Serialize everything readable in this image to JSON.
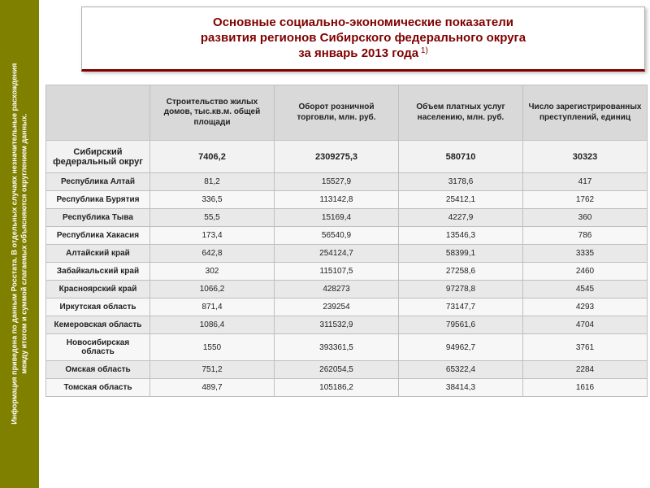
{
  "sidebar": {
    "note_line1": "Информация приведена по данным Росстата. В отдельных случаях незначительные расхождения",
    "note_line2": "между итогом и суммой слагаемых объясняются округлением данных."
  },
  "title": {
    "line1": "Основные социально-экономические показатели",
    "line2": "развития регионов Сибирского федерального округа",
    "line3": "за январь 2013 года",
    "footnote": " 1)"
  },
  "table": {
    "columns": [
      "",
      "Строительство жилых домов, тыс.кв.м. общей площади",
      "Оборот розничной торговли, млн. руб.",
      "Объем платных услуг населению, млн. руб.",
      "Число зарегистрированных преступлений, единиц"
    ],
    "summary": {
      "region": "Сибирский федеральный округ",
      "v1": "7406,2",
      "v2": "2309275,3",
      "v3": "580710",
      "v4": "30323"
    },
    "rows": [
      {
        "region": "Республика Алтай",
        "v1": "81,2",
        "v2": "15527,9",
        "v3": "3178,6",
        "v4": "417"
      },
      {
        "region": "Республика Бурятия",
        "v1": "336,5",
        "v2": "113142,8",
        "v3": "25412,1",
        "v4": "1762"
      },
      {
        "region": "Республика Тыва",
        "v1": "55,5",
        "v2": "15169,4",
        "v3": "4227,9",
        "v4": "360"
      },
      {
        "region": "Республика Хакасия",
        "v1": "173,4",
        "v2": "56540,9",
        "v3": "13546,3",
        "v4": "786"
      },
      {
        "region": "Алтайский край",
        "v1": "642,8",
        "v2": "254124,7",
        "v3": "58399,1",
        "v4": "3335"
      },
      {
        "region": "Забайкальский край",
        "v1": "302",
        "v2": "115107,5",
        "v3": "27258,6",
        "v4": "2460"
      },
      {
        "region": "Красноярский край",
        "v1": "1066,2",
        "v2": "428273",
        "v3": "97278,8",
        "v4": "4545"
      },
      {
        "region": "Иркутская область",
        "v1": "871,4",
        "v2": "239254",
        "v3": "73147,7",
        "v4": "4293"
      },
      {
        "region": "Кемеровская область",
        "v1": "1086,4",
        "v2": "311532,9",
        "v3": "79561,6",
        "v4": "4704"
      },
      {
        "region": "Новосибирская область",
        "v1": "1550",
        "v2": "393361,5",
        "v3": "94962,7",
        "v4": "3761"
      },
      {
        "region": "Омская область",
        "v1": "751,2",
        "v2": "262054,5",
        "v3": "65322,4",
        "v4": "2284"
      },
      {
        "region": "Томская область",
        "v1": "489,7",
        "v2": "105186,2",
        "v3": "38414,3",
        "v4": "1616"
      }
    ]
  }
}
